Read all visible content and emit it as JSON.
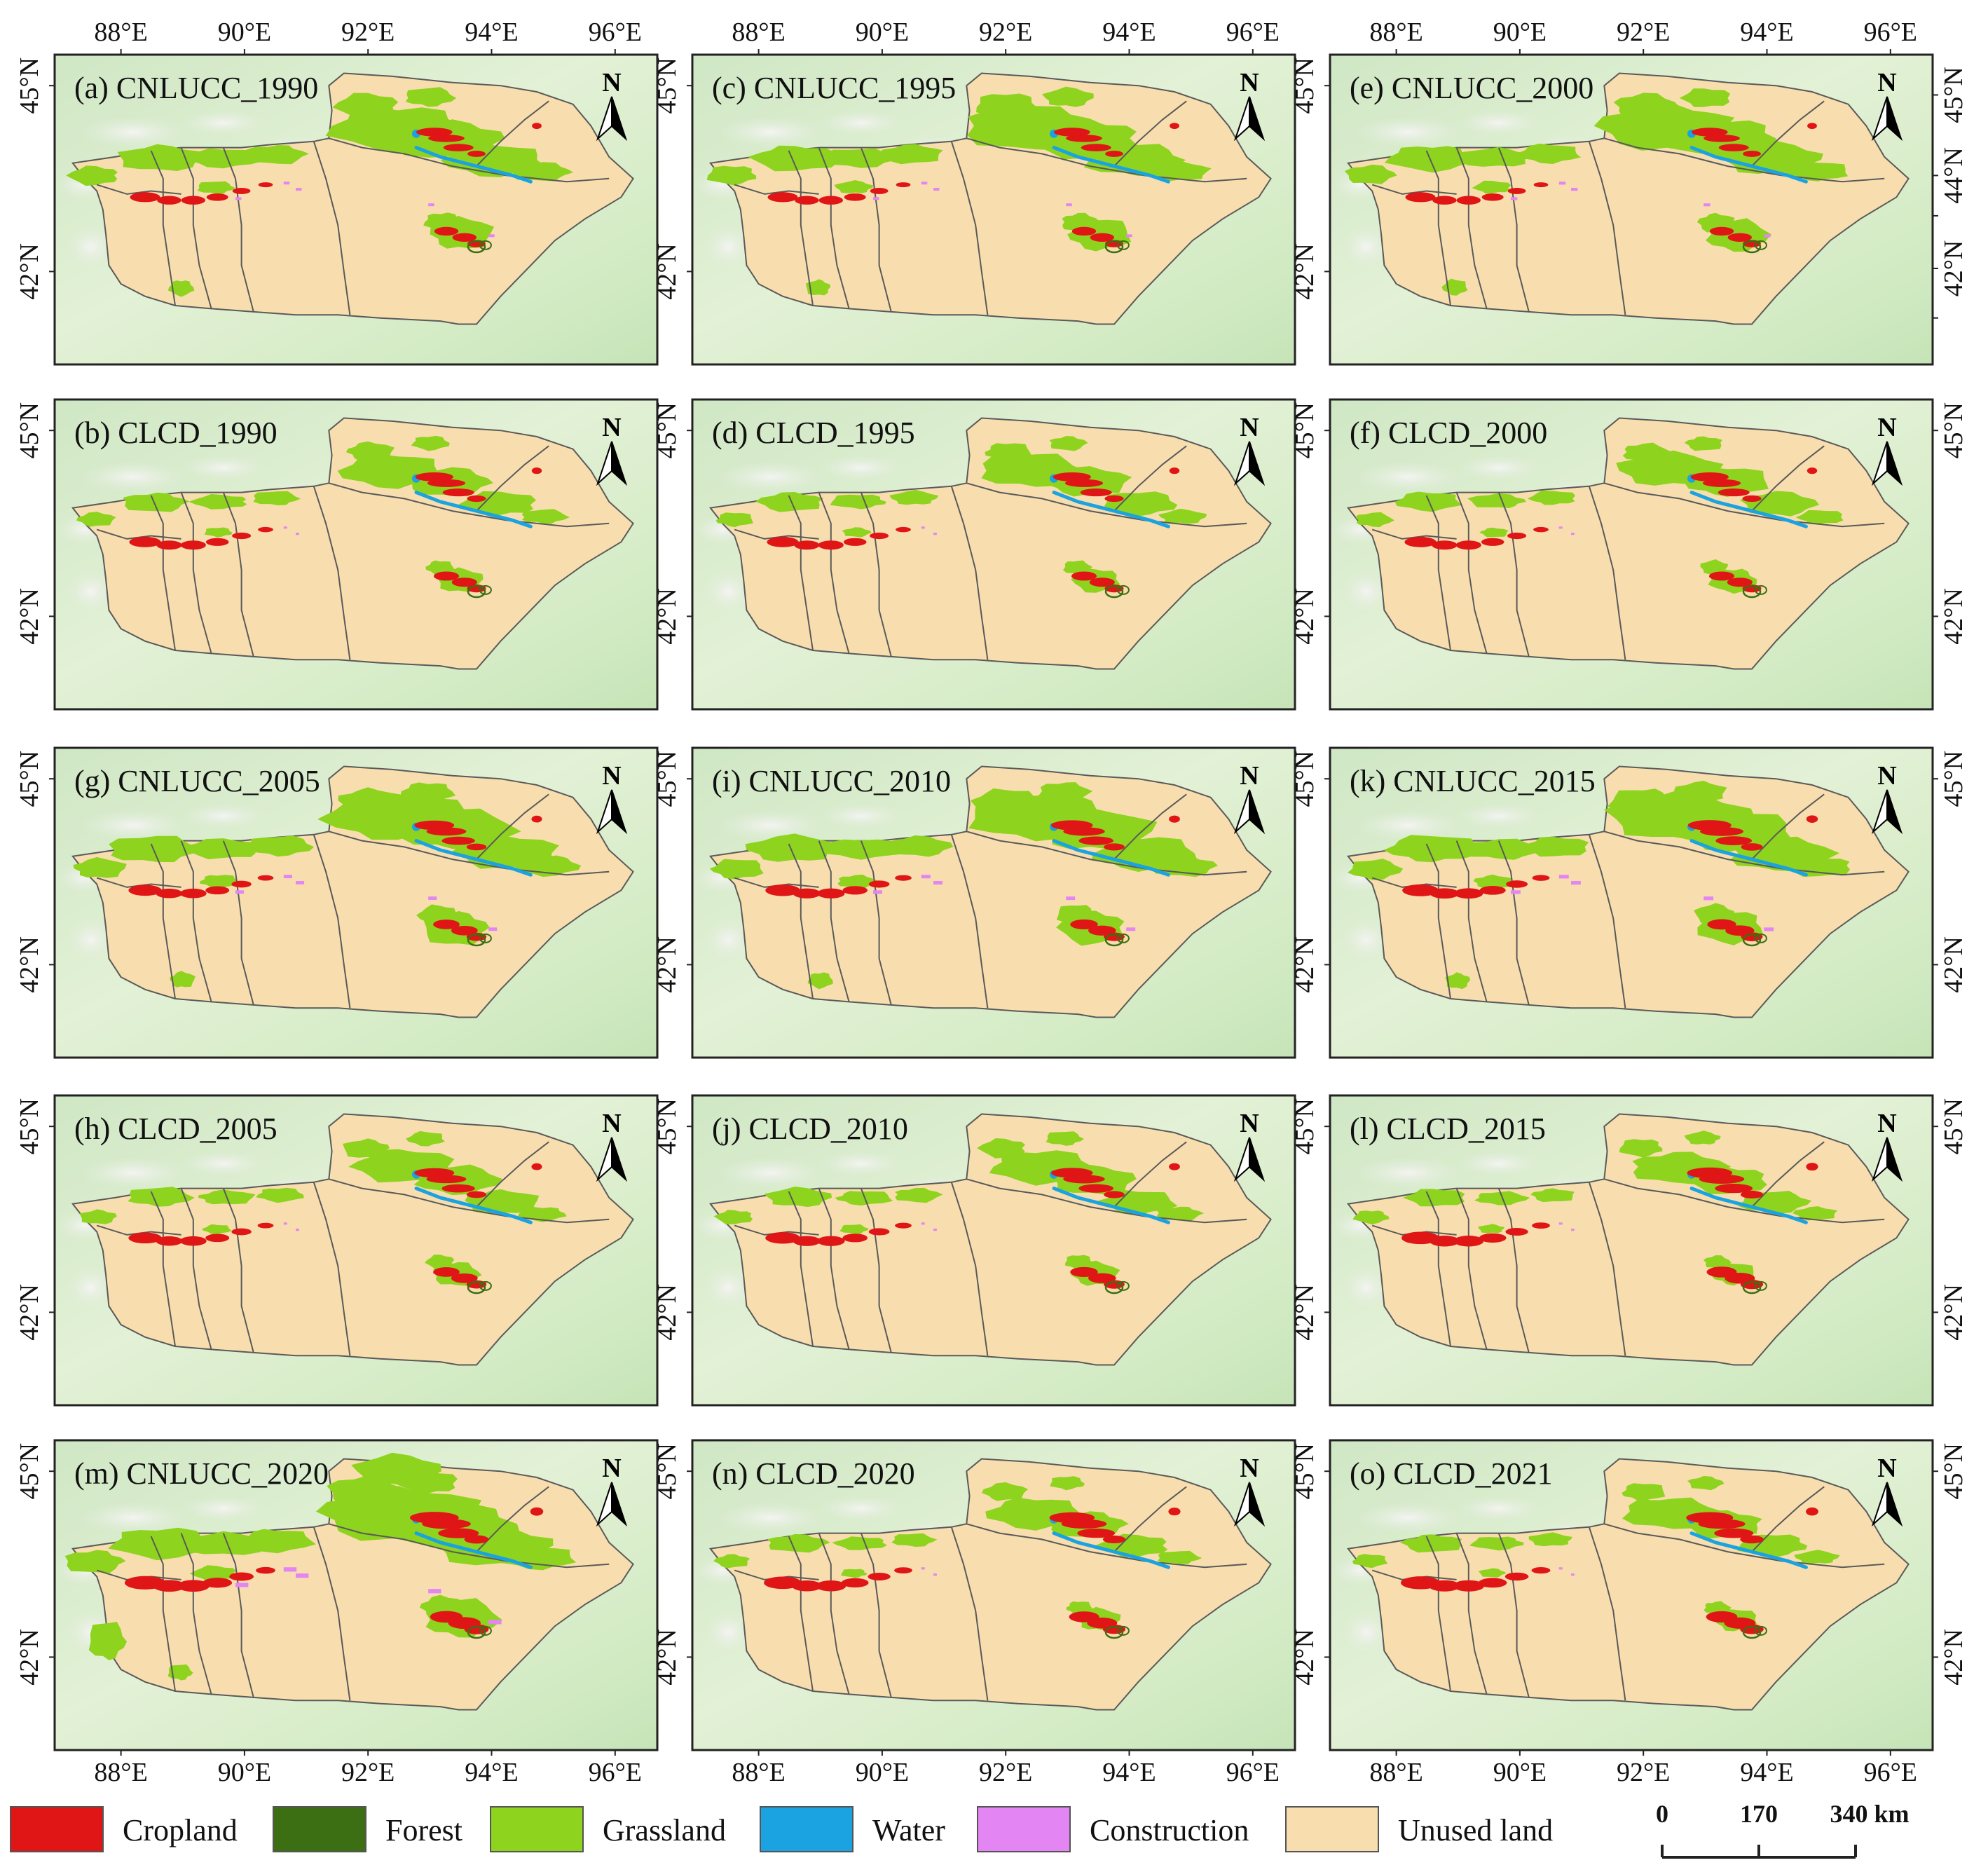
{
  "figure": {
    "colors": {
      "unused": "#f8deae",
      "grassland": "#8ed31e",
      "cropland": "#e01616",
      "forest": "#3c6e14",
      "water": "#1aa3e0",
      "construction": "#e385f2",
      "background": "#d8eccb",
      "boundary": "#5a5a5a"
    },
    "north_label": "N",
    "top_axis_ticks": [
      "88°E",
      "90°E",
      "92°E",
      "94°E",
      "96°E"
    ],
    "bottom_axis_ticks": [
      "88°E",
      "90°E",
      "92°E",
      "94°E",
      "96°E"
    ],
    "left_axis_ticks": [
      "45°N",
      "42°N"
    ],
    "right_axis_ticks_first_row": [
      "45°N",
      "44°N",
      "42°N"
    ],
    "right_axis_ticks": [
      "45°N",
      "42°N"
    ],
    "panels": [
      {
        "label": "(a) CNLUCC_1990",
        "grass_extent": 1.0,
        "crop_extent": 1.0,
        "construction": 0.25
      },
      {
        "label": "(c) CNLUCC_1995",
        "grass_extent": 1.0,
        "crop_extent": 1.0,
        "construction": 0.25
      },
      {
        "label": "(e) CNLUCC_2000",
        "grass_extent": 1.0,
        "crop_extent": 1.0,
        "construction": 0.3
      },
      {
        "label": "(b) CLCD_1990",
        "grass_extent": 0.75,
        "crop_extent": 1.05,
        "construction": 0.05
      },
      {
        "label": "(d) CLCD_1995",
        "grass_extent": 0.75,
        "crop_extent": 1.05,
        "construction": 0.05
      },
      {
        "label": "(f) CLCD_2000",
        "grass_extent": 0.75,
        "crop_extent": 1.05,
        "construction": 0.05
      },
      {
        "label": "(g) CNLUCC_2005",
        "grass_extent": 1.05,
        "crop_extent": 1.1,
        "construction": 0.45
      },
      {
        "label": "(i) CNLUCC_2010",
        "grass_extent": 1.05,
        "crop_extent": 1.15,
        "construction": 0.5
      },
      {
        "label": "(k) CNLUCC_2015",
        "grass_extent": 1.05,
        "crop_extent": 1.2,
        "construction": 0.55
      },
      {
        "label": "(h) CLCD_2005",
        "grass_extent": 0.75,
        "crop_extent": 1.1,
        "construction": 0.05
      },
      {
        "label": "(j) CLCD_2010",
        "grass_extent": 0.75,
        "crop_extent": 1.15,
        "construction": 0.05
      },
      {
        "label": "(l) CLCD_2015",
        "grass_extent": 0.7,
        "crop_extent": 1.25,
        "construction": 0.05
      },
      {
        "label": "(m) CNLUCC_2020",
        "grass_extent": 1.2,
        "crop_extent": 1.35,
        "construction": 0.8
      },
      {
        "label": "(n) CLCD_2020",
        "grass_extent": 0.7,
        "crop_extent": 1.25,
        "construction": 0.05
      },
      {
        "label": "(o) CLCD_2021",
        "grass_extent": 0.7,
        "crop_extent": 1.3,
        "construction": 0.05
      }
    ]
  },
  "legend": [
    {
      "label": "Cropland",
      "color": "#e01616"
    },
    {
      "label": "Forest",
      "color": "#3c6e14"
    },
    {
      "label": "Grassland",
      "color": "#8ed31e"
    },
    {
      "label": "Water",
      "color": "#1aa3e0"
    },
    {
      "label": "Construction",
      "color": "#e385f2"
    },
    {
      "label": "Unused land",
      "color": "#f8deae"
    }
  ],
  "scale_bar": {
    "labels": [
      "0",
      "170",
      "340 km"
    ]
  }
}
